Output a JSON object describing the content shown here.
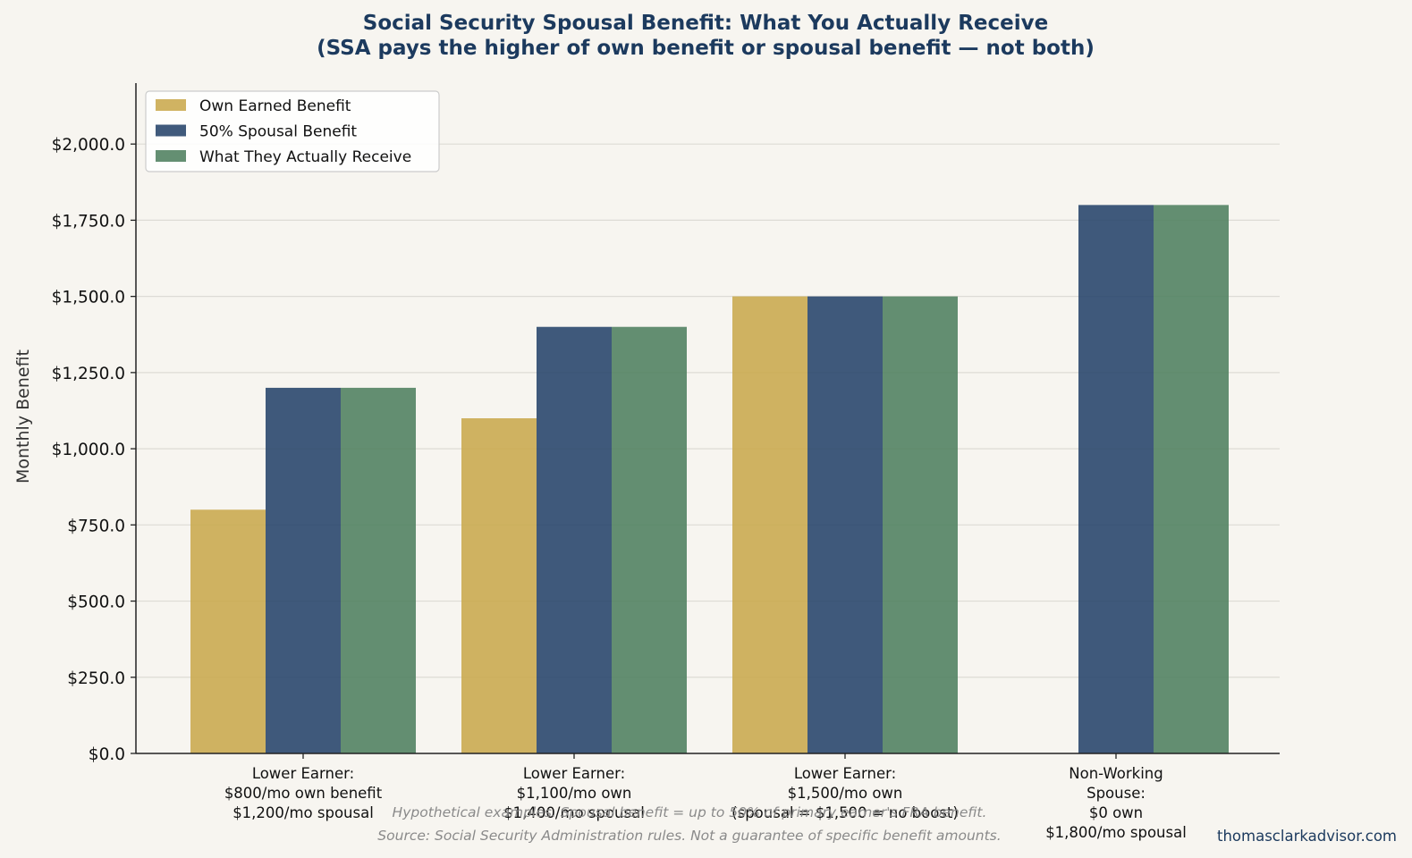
{
  "chart_data": {
    "type": "bar",
    "title": "Social Security Spousal Benefit: What You Actually Receive",
    "subtitle": "(SSA pays the higher of own benefit or spousal benefit — not both)",
    "xlabel": "",
    "ylabel": "Monthly Benefit",
    "ylim": [
      0,
      2200
    ],
    "yticks": [
      0,
      250,
      500,
      750,
      1000,
      1250,
      1500,
      1750,
      2000
    ],
    "ytick_labels": [
      "$0.0",
      "$250.0",
      "$500.0",
      "$750.0",
      "$1,000.0",
      "$1,250.0",
      "$1,500.0",
      "$1,750.0",
      "$2,000.0"
    ],
    "grid": true,
    "legend_position": "top-left",
    "categories": [
      [
        "Lower Earner:",
        "$800/mo own benefit",
        "$1,200/mo spousal"
      ],
      [
        "Lower Earner:",
        "$1,100/mo own",
        "$1,400/mo spousal"
      ],
      [
        "Lower Earner:",
        "$1,500/mo own",
        "(spousal = $1,500 = no boost)"
      ],
      [
        "Non-Working",
        "Spouse:",
        "$0 own",
        "$1,800/mo spousal"
      ]
    ],
    "series": [
      {
        "name": "Own Earned Benefit",
        "color": "#c9a84c",
        "values": [
          800,
          1100,
          1500,
          0
        ]
      },
      {
        "name": "50% Spousal Benefit",
        "color": "#26436a",
        "values": [
          1200,
          1400,
          1500,
          1800
        ]
      },
      {
        "name": "What They Actually Receive",
        "color": "#4f7f5f",
        "values": [
          1200,
          1400,
          1500,
          1800
        ]
      }
    ]
  },
  "footnote": [
    "Hypothetical examples. Spousal benefit = up to 50% of primary earner's FRA benefit.",
    "Source: Social Security Administration rules. Not a guarantee of specific benefit amounts."
  ],
  "watermark": "thomasclarkadvisor.com",
  "colors": {
    "background": "#f7f5f0",
    "title": "#1c3a5e",
    "footnote": "#8a8a8a"
  }
}
